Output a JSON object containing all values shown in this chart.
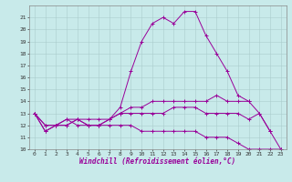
{
  "title": "",
  "xlabel": "Windchill (Refroidissement éolien,°C)",
  "ylabel": "",
  "bg_color": "#c8eaea",
  "line_color": "#990099",
  "grid_color": "#aacccc",
  "x_values": [
    0,
    1,
    2,
    3,
    4,
    5,
    6,
    7,
    8,
    9,
    10,
    11,
    12,
    13,
    14,
    15,
    16,
    17,
    18,
    19,
    20,
    21,
    22,
    23
  ],
  "line1": [
    13.0,
    11.5,
    12.0,
    12.0,
    12.5,
    12.0,
    12.0,
    12.5,
    13.5,
    16.5,
    19.0,
    20.5,
    21.0,
    20.5,
    21.5,
    21.5,
    19.5,
    18.0,
    16.5,
    14.5,
    14.0,
    null,
    null,
    null
  ],
  "line2": [
    13.0,
    11.5,
    12.0,
    12.0,
    12.5,
    12.0,
    12.0,
    12.5,
    13.0,
    13.5,
    13.5,
    14.0,
    14.0,
    14.0,
    14.0,
    14.0,
    14.0,
    14.5,
    14.0,
    14.0,
    14.0,
    13.0,
    11.5,
    null
  ],
  "line3": [
    13.0,
    12.0,
    12.0,
    12.5,
    12.5,
    12.5,
    12.5,
    12.5,
    13.0,
    13.0,
    13.0,
    13.0,
    13.0,
    13.5,
    13.5,
    13.5,
    13.0,
    13.0,
    13.0,
    13.0,
    12.5,
    13.0,
    11.5,
    10.0
  ],
  "line4": [
    13.0,
    12.0,
    12.0,
    12.5,
    12.0,
    12.0,
    12.0,
    12.0,
    12.0,
    12.0,
    11.5,
    11.5,
    11.5,
    11.5,
    11.5,
    11.5,
    11.0,
    11.0,
    11.0,
    10.5,
    10.0,
    10.0,
    10.0,
    10.0
  ],
  "ylim": [
    10,
    22
  ],
  "xlim": [
    -0.5,
    23.5
  ],
  "yticks": [
    10,
    11,
    12,
    13,
    14,
    15,
    16,
    17,
    18,
    19,
    20,
    21
  ],
  "xticks": [
    0,
    1,
    2,
    3,
    4,
    5,
    6,
    7,
    8,
    9,
    10,
    11,
    12,
    13,
    14,
    15,
    16,
    17,
    18,
    19,
    20,
    21,
    22,
    23
  ],
  "tick_fontsize": 4.5,
  "label_fontsize": 5.5,
  "marker": "+"
}
